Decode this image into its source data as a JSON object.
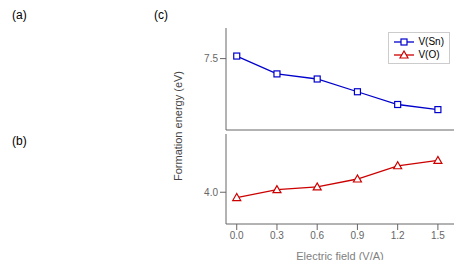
{
  "chart_data": [
    {
      "type": "line",
      "title": "(c)",
      "ylabel": "Formation energy (eV)",
      "annotations": [
        "(a)",
        "(b)"
      ],
      "x": [
        0.0,
        0.3,
        0.6,
        0.9,
        1.2,
        1.5
      ],
      "series": [
        {
          "name": "V(Sn)",
          "color": "#0000cc",
          "marker": "square",
          "values": [
            7.51,
            7.44,
            7.42,
            7.37,
            7.32,
            7.3
          ]
        }
      ],
      "xlim": [
        -0.08,
        1.62
      ],
      "ylim": [
        7.22,
        7.62
      ],
      "yticks": [
        7.5
      ],
      "tick_labels": "y",
      "legend": "upper right"
    },
    {
      "type": "line",
      "xlabel": "Electric field (V/A)",
      "x": [
        0.0,
        0.3,
        0.6,
        0.9,
        1.2,
        1.5
      ],
      "series": [
        {
          "name": "V(O)",
          "color": "#cc0000",
          "marker": "triangle",
          "values": [
            3.98,
            4.01,
            4.02,
            4.05,
            4.1,
            4.12
          ]
        }
      ],
      "xlim": [
        -0.08,
        1.62
      ],
      "ylim": [
        3.88,
        4.22
      ],
      "yticks": [
        {
          "value": 4,
          "label": "4.0"
        }
      ],
      "xticks": [
        {
          "value": 0,
          "label": "0.0"
        },
        0.3,
        0.6,
        0.9,
        1.2,
        1.5
      ]
    }
  ]
}
